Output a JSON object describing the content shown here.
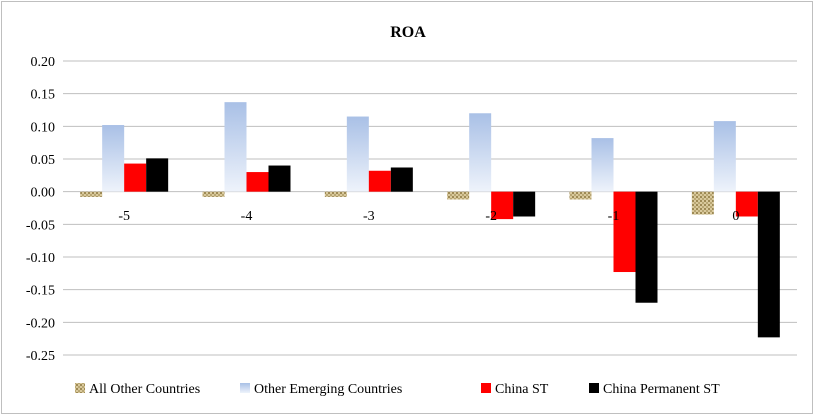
{
  "chart_data": {
    "type": "bar",
    "title": "ROA",
    "categories": [
      "-5",
      "-4",
      "-3",
      "-2",
      "-1",
      "0"
    ],
    "ylim": [
      -0.25,
      0.2
    ],
    "yticks": [
      "0.20",
      "0.15",
      "0.10",
      "0.05",
      "0.00",
      "-0.05",
      "-0.10",
      "-0.15",
      "-0.20",
      "-0.25"
    ],
    "ytick_values": [
      0.2,
      0.15,
      0.1,
      0.05,
      0.0,
      -0.05,
      -0.1,
      -0.15,
      -0.2,
      -0.25
    ],
    "grid": true,
    "legend_position": "bottom",
    "series": [
      {
        "name": "All Other Countries",
        "values": [
          -0.008,
          -0.008,
          -0.008,
          -0.012,
          -0.012,
          -0.035
        ],
        "color": "#c8b98a",
        "pattern": "tan-dots"
      },
      {
        "name": "Other Emerging Countries",
        "values": [
          0.102,
          0.137,
          0.115,
          0.12,
          0.082,
          0.108
        ],
        "color": "#b4c7e7",
        "pattern": "blue-gradient"
      },
      {
        "name": "China ST",
        "values": [
          0.043,
          0.03,
          0.032,
          -0.042,
          -0.123,
          -0.038
        ],
        "color": "#ff0000"
      },
      {
        "name": "China Permanent ST",
        "values": [
          0.051,
          0.04,
          0.037,
          -0.038,
          -0.17,
          -0.223
        ],
        "color": "#000000"
      }
    ]
  }
}
